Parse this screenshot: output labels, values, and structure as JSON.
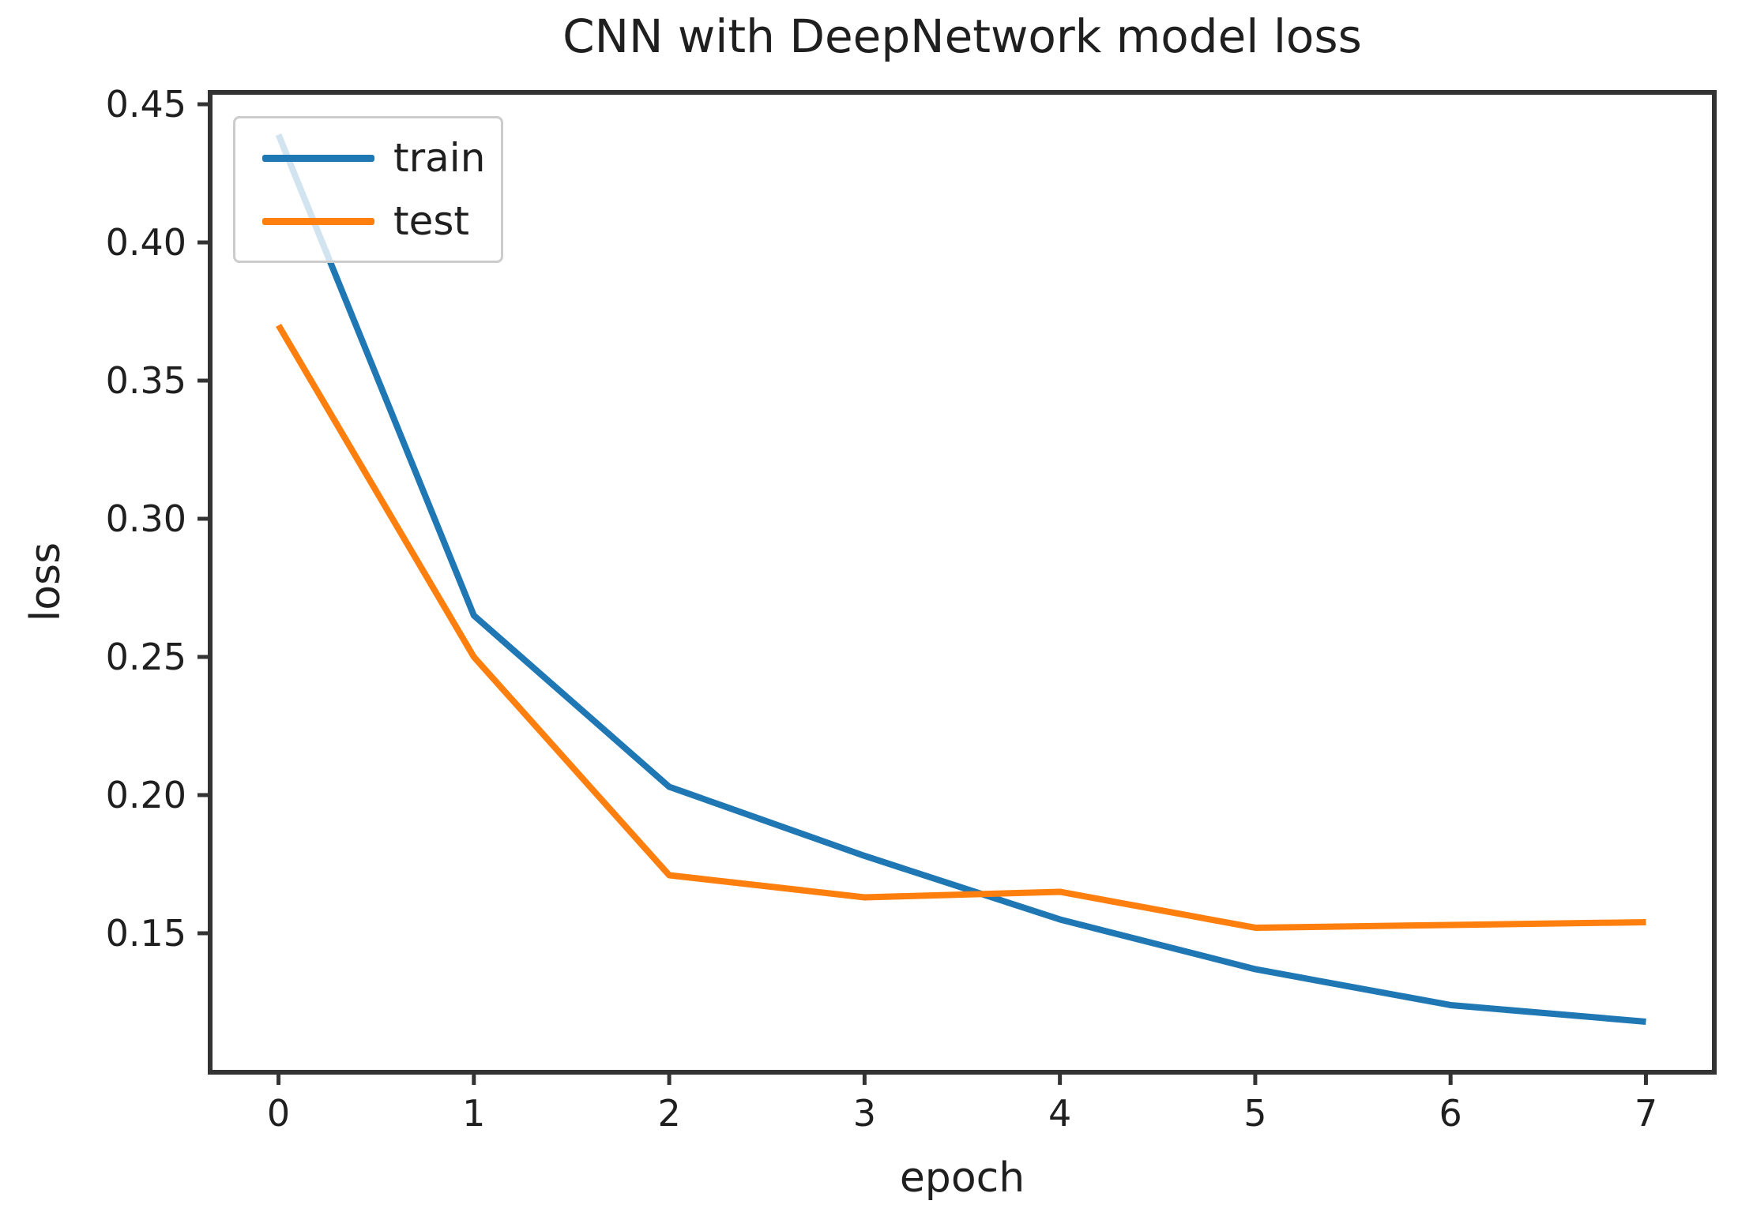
{
  "figure": {
    "title": "CNN with DeepNetwork model loss",
    "xlabel": "epoch",
    "ylabel": "loss"
  },
  "legend": {
    "position": "upper left",
    "entries": [
      {
        "label": "train",
        "color": "#1f77b4"
      },
      {
        "label": "test",
        "color": "#ff7f0e"
      }
    ]
  },
  "chart_data": {
    "type": "line",
    "title": "CNN with DeepNetwork model loss",
    "xlabel": "epoch",
    "ylabel": "loss",
    "x": [
      0,
      1,
      2,
      3,
      4,
      5,
      6,
      7
    ],
    "series": [
      {
        "name": "train",
        "color": "#1f77b4",
        "values": [
          0.439,
          0.265,
          0.203,
          0.178,
          0.155,
          0.137,
          0.124,
          0.118
        ]
      },
      {
        "name": "test",
        "color": "#ff7f0e",
        "values": [
          0.37,
          0.25,
          0.171,
          0.163,
          0.165,
          0.152,
          0.153,
          0.154
        ]
      }
    ],
    "xlim": [
      -0.35,
      7.35
    ],
    "ylim": [
      0.0997,
      0.4543
    ],
    "xticks": [
      0,
      1,
      2,
      3,
      4,
      5,
      6,
      7
    ],
    "xtick_labels": [
      "0",
      "1",
      "2",
      "3",
      "4",
      "5",
      "6",
      "7"
    ],
    "yticks": [
      0.15,
      0.2,
      0.25,
      0.3,
      0.35,
      0.4,
      0.45
    ],
    "ytick_labels": [
      "0.15",
      "0.20",
      "0.25",
      "0.30",
      "0.35",
      "0.40",
      "0.45"
    ],
    "grid": false,
    "legend_position": "upper left",
    "axis_color": "#333333",
    "tick_label_color": "#1f1f1f"
  }
}
